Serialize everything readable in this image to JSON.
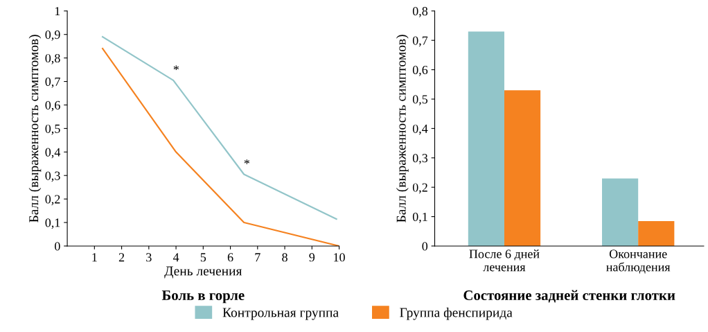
{
  "chart_data": [
    {
      "type": "line",
      "title": "Боль в горле",
      "xlabel": "День лечения",
      "ylabel": "Балл (выраженность симптомов)",
      "xlim": [
        0,
        10
      ],
      "xticks": [
        1,
        2,
        3,
        4,
        5,
        6,
        7,
        8,
        9,
        10
      ],
      "ylim": [
        0,
        1
      ],
      "yticks": [
        0,
        {
          "value": 0.1,
          "label": "0,1"
        },
        {
          "value": 0.2,
          "label": "0,2"
        },
        {
          "value": 0.3,
          "label": "0,3"
        },
        {
          "value": 0.4,
          "label": "0,4"
        },
        {
          "value": 0.5,
          "label": "0,5"
        },
        {
          "value": 0.6,
          "label": "0,6"
        },
        {
          "value": 0.7,
          "label": "0,7"
        },
        {
          "value": 0.8,
          "label": "0,8"
        },
        {
          "value": 0.9,
          "label": "0,9"
        },
        1
      ],
      "series": [
        {
          "name": "Контрольная группа",
          "color": "#92c5c9",
          "x": [
            1.3,
            3.9,
            6.5,
            9.9
          ],
          "values": [
            0.89,
            0.705,
            0.305,
            0.115
          ]
        },
        {
          "name": "Группа фенспирида",
          "color": "#f58220",
          "x": [
            1.3,
            4.0,
            6.5,
            10
          ],
          "values": [
            0.84,
            0.4,
            0.1,
            0
          ]
        }
      ],
      "annotations": [
        {
          "text": "*",
          "x": 3.9,
          "y": 0.705
        },
        {
          "text": "*",
          "x": 6.5,
          "y": 0.305
        }
      ],
      "grid": false,
      "legend": "bottom"
    },
    {
      "type": "bar",
      "title": "Состояние задней стенки глотки",
      "ylabel": "Балл (выраженность симптомов)",
      "categories": [
        "После 6 дней\nлечения",
        "Окончание\nнаблюдения"
      ],
      "ylim": [
        0,
        0.8
      ],
      "yticks": [
        0,
        {
          "value": 0.1,
          "label": "0,1"
        },
        {
          "value": 0.2,
          "label": "0,2"
        },
        {
          "value": 0.3,
          "label": "0,3"
        },
        {
          "value": 0.4,
          "label": "0,4"
        },
        {
          "value": 0.5,
          "label": "0,5"
        },
        {
          "value": 0.6,
          "label": "0,6"
        },
        {
          "value": 0.7,
          "label": "0,7"
        },
        {
          "value": 0.8,
          "label": "0,8"
        }
      ],
      "series": [
        {
          "color": "#92c5c9",
          "values": [
            0.73,
            0.23
          ]
        },
        {
          "color": "#f58220",
          "values": [
            0.53,
            0.085
          ]
        }
      ],
      "grid": false
    }
  ]
}
